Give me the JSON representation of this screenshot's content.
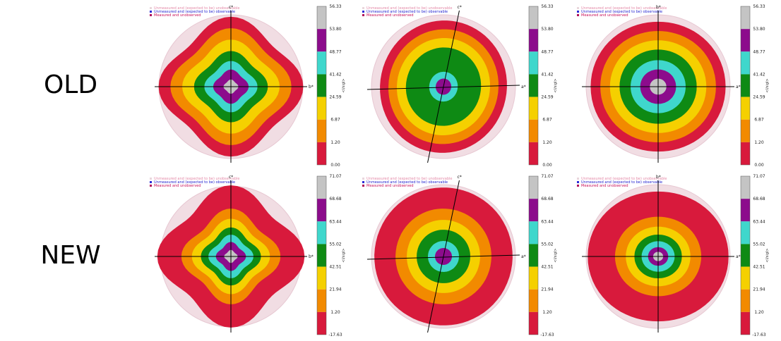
{
  "row_labels": {
    "old": "OLD",
    "new": "NEW"
  },
  "legend_entries": [
    {
      "label": "Unmeasured and (expected to be) unobservable",
      "color": "#e48aa8",
      "marker": "#e9d6dc"
    },
    {
      "label": "Unmeasured and (expected to be) observable",
      "color": "#1e1ecf",
      "marker": "#2b2bd9"
    },
    {
      "label": "Measured and unobserved",
      "color": "#c8105a",
      "marker": "#b0105a"
    }
  ],
  "colorbar_unit": "<I/sigI>",
  "band_colors": [
    "#d81a3c",
    "#f28a00",
    "#f5d000",
    "#0e8a14",
    "#3fd7cc",
    "#8c0c8c",
    "#c4c4c4"
  ],
  "chart_data": [
    {
      "type": "heatmap",
      "row": "OLD",
      "panel": 1,
      "h_axis": "b*",
      "v_axis": "c*",
      "colorbar_ticks": [
        "56.33",
        "53.80",
        "48.77",
        "41.42",
        "24.59",
        "6.87",
        "1.20",
        "0.00"
      ]
    },
    {
      "type": "heatmap",
      "row": "OLD",
      "panel": 2,
      "h_axis": "a*",
      "v_axis": "c*",
      "colorbar_ticks": [
        "56.33",
        "53.80",
        "48.77",
        "41.42",
        "24.59",
        "6.87",
        "1.20",
        "0.00"
      ]
    },
    {
      "type": "heatmap",
      "row": "OLD",
      "panel": 3,
      "h_axis": "a*",
      "v_axis": "b*",
      "colorbar_ticks": [
        "56.33",
        "53.80",
        "48.77",
        "41.42",
        "24.59",
        "6.87",
        "1.20",
        "0.00"
      ]
    },
    {
      "type": "heatmap",
      "row": "NEW",
      "panel": 1,
      "h_axis": "b*",
      "v_axis": "c*",
      "colorbar_ticks": [
        "71.07",
        "68.68",
        "63.44",
        "55.02",
        "42.51",
        "21.94",
        "1.20",
        "-17.63"
      ]
    },
    {
      "type": "heatmap",
      "row": "NEW",
      "panel": 2,
      "h_axis": "a*",
      "v_axis": "c*",
      "colorbar_ticks": [
        "71.07",
        "68.68",
        "63.44",
        "55.02",
        "42.51",
        "21.94",
        "1.20",
        "-17.63"
      ]
    },
    {
      "type": "heatmap",
      "row": "NEW",
      "panel": 3,
      "h_axis": "a*",
      "v_axis": "b*",
      "colorbar_ticks": [
        "71.07",
        "68.68",
        "63.44",
        "55.02",
        "42.51",
        "21.94",
        "1.20",
        "-17.63"
      ]
    }
  ]
}
